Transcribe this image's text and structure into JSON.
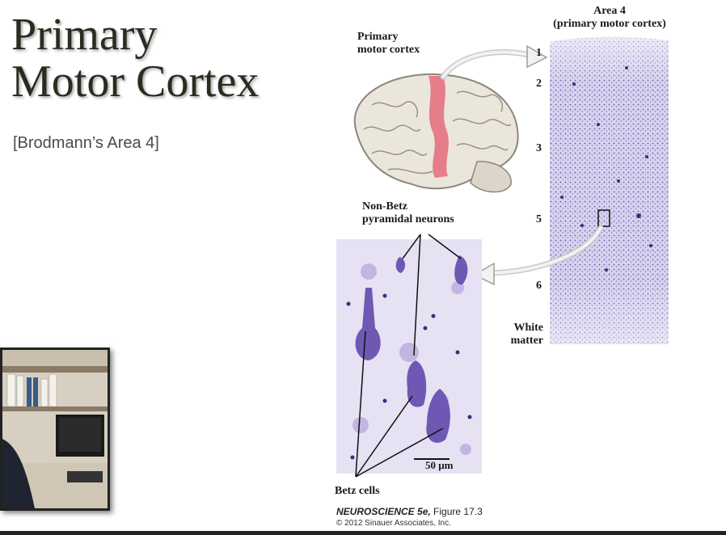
{
  "slide": {
    "title_line1": "Primary",
    "title_line2": "Motor Cortex",
    "subtitle": "[Brodmann’s Area 4]"
  },
  "figure": {
    "brain_label_line1": "Primary",
    "brain_label_line2": "motor cortex",
    "area_title_line1": "Area 4",
    "area_title_line2": "(primary motor cortex)",
    "layers": [
      "1",
      "2",
      "3",
      "5",
      "6"
    ],
    "white_matter_line1": "White",
    "white_matter_line2": "matter",
    "nonbetz_line1": "Non-Betz",
    "nonbetz_line2": "pyramidal neurons",
    "scale_bar": "50 μm",
    "betz_label": "Betz cells",
    "caption_title": "NEUROSCIENCE 5e,",
    "caption_fig": "Figure 17.3",
    "copyright": "© 2012 Sinauer Associates, Inc."
  },
  "colors": {
    "stain": "#5a4a9a",
    "stain_bg": "#d7d2ee",
    "motor_strip": "#e46b7a",
    "brain": "#e9e4da"
  },
  "icons": {
    "arrow": "curved-arrow"
  }
}
